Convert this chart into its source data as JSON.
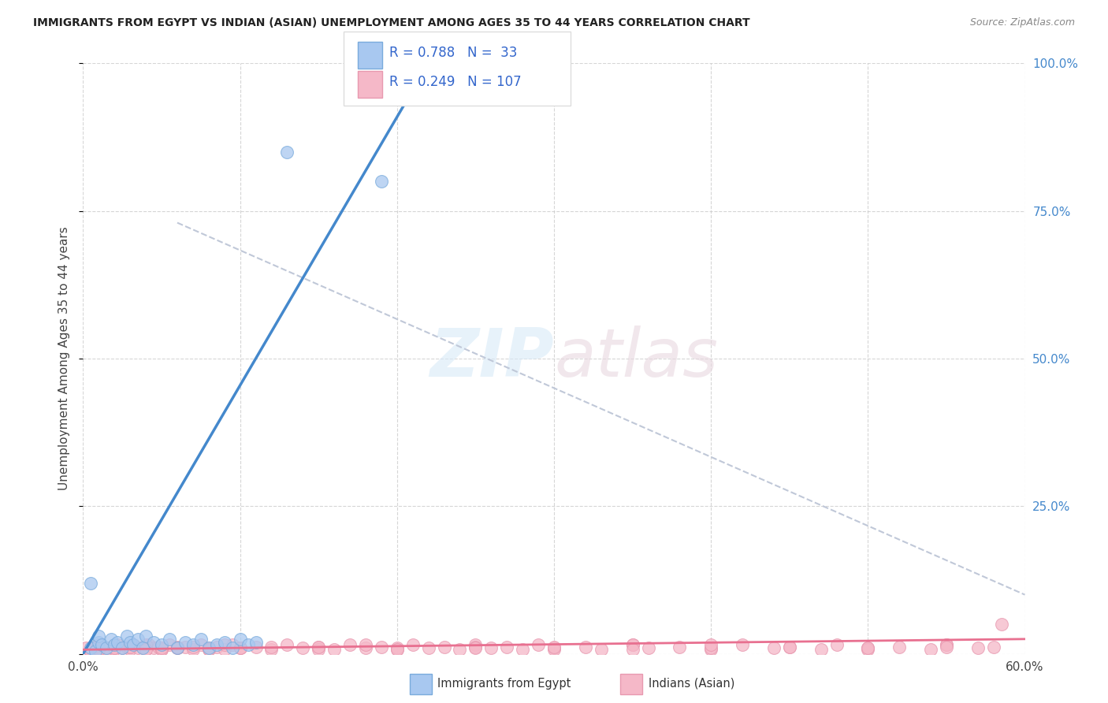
{
  "title": "IMMIGRANTS FROM EGYPT VS INDIAN (ASIAN) UNEMPLOYMENT AMONG AGES 35 TO 44 YEARS CORRELATION CHART",
  "source": "Source: ZipAtlas.com",
  "ylabel": "Unemployment Among Ages 35 to 44 years",
  "xlim": [
    0.0,
    0.6
  ],
  "ylim": [
    0.0,
    1.0
  ],
  "xticks": [
    0.0,
    0.1,
    0.2,
    0.3,
    0.4,
    0.5,
    0.6
  ],
  "xticklabels": [
    "0.0%",
    "",
    "",
    "",
    "",
    "",
    "60.0%"
  ],
  "yticks_right": [
    0.0,
    0.25,
    0.5,
    0.75,
    1.0
  ],
  "ytick_right_labels": [
    "",
    "25.0%",
    "50.0%",
    "75.0%",
    "100.0%"
  ],
  "background_color": "#ffffff",
  "grid_color": "#cccccc",
  "egypt_color": "#a8c8f0",
  "egypt_edge_color": "#7aabdc",
  "india_color": "#f5b8c8",
  "india_edge_color": "#e899b0",
  "egypt_R": 0.788,
  "egypt_N": 33,
  "india_R": 0.249,
  "india_N": 107,
  "egypt_line_color": "#4488cc",
  "india_line_color": "#e87090",
  "ref_line_color": "#c0c8d8",
  "egypt_scatter_x": [
    0.005,
    0.008,
    0.01,
    0.01,
    0.012,
    0.015,
    0.018,
    0.02,
    0.022,
    0.025,
    0.028,
    0.03,
    0.032,
    0.035,
    0.038,
    0.04,
    0.045,
    0.05,
    0.055,
    0.06,
    0.065,
    0.07,
    0.075,
    0.08,
    0.085,
    0.09,
    0.095,
    0.1,
    0.105,
    0.11,
    0.13,
    0.19,
    0.005
  ],
  "egypt_scatter_y": [
    0.01,
    0.005,
    0.02,
    0.03,
    0.015,
    0.01,
    0.025,
    0.015,
    0.02,
    0.01,
    0.03,
    0.02,
    0.015,
    0.025,
    0.01,
    0.03,
    0.02,
    0.015,
    0.025,
    0.01,
    0.02,
    0.015,
    0.025,
    0.01,
    0.015,
    0.02,
    0.01,
    0.025,
    0.015,
    0.02,
    0.85,
    0.8,
    0.12
  ],
  "india_scatter_x": [
    0.002,
    0.005,
    0.008,
    0.01,
    0.012,
    0.015,
    0.018,
    0.02,
    0.022,
    0.025,
    0.028,
    0.03,
    0.032,
    0.035,
    0.038,
    0.04,
    0.042,
    0.045,
    0.048,
    0.05,
    0.055,
    0.06,
    0.065,
    0.07,
    0.075,
    0.08,
    0.085,
    0.09,
    0.095,
    0.1,
    0.11,
    0.12,
    0.13,
    0.14,
    0.15,
    0.16,
    0.17,
    0.18,
    0.19,
    0.2,
    0.21,
    0.22,
    0.23,
    0.24,
    0.25,
    0.26,
    0.27,
    0.28,
    0.29,
    0.3,
    0.32,
    0.33,
    0.35,
    0.36,
    0.38,
    0.4,
    0.42,
    0.44,
    0.45,
    0.47,
    0.48,
    0.5,
    0.52,
    0.54,
    0.55,
    0.57,
    0.58,
    0.585,
    0.01,
    0.015,
    0.02,
    0.03,
    0.04,
    0.05,
    0.06,
    0.07,
    0.08,
    0.09,
    0.1,
    0.12,
    0.15,
    0.18,
    0.2,
    0.25,
    0.3,
    0.35,
    0.4,
    0.45,
    0.5,
    0.55,
    0.005,
    0.01,
    0.02,
    0.03,
    0.04,
    0.05,
    0.06,
    0.08,
    0.1,
    0.15,
    0.2,
    0.25,
    0.3,
    0.35,
    0.4,
    0.5,
    0.55
  ],
  "india_scatter_y": [
    0.01,
    0.008,
    0.012,
    0.015,
    0.008,
    0.01,
    0.012,
    0.008,
    0.015,
    0.01,
    0.012,
    0.008,
    0.015,
    0.01,
    0.012,
    0.008,
    0.015,
    0.01,
    0.012,
    0.008,
    0.015,
    0.01,
    0.012,
    0.008,
    0.015,
    0.01,
    0.012,
    0.008,
    0.015,
    0.01,
    0.012,
    0.008,
    0.015,
    0.01,
    0.012,
    0.008,
    0.015,
    0.01,
    0.012,
    0.008,
    0.015,
    0.01,
    0.012,
    0.008,
    0.015,
    0.01,
    0.012,
    0.008,
    0.015,
    0.01,
    0.012,
    0.008,
    0.015,
    0.01,
    0.012,
    0.008,
    0.015,
    0.01,
    0.012,
    0.008,
    0.015,
    0.01,
    0.012,
    0.008,
    0.015,
    0.01,
    0.012,
    0.05,
    0.005,
    0.008,
    0.01,
    0.012,
    0.015,
    0.008,
    0.01,
    0.012,
    0.008,
    0.015,
    0.01,
    0.012,
    0.008,
    0.015,
    0.01,
    0.012,
    0.008,
    0.015,
    0.01,
    0.012,
    0.008,
    0.015,
    0.005,
    0.008,
    0.01,
    0.012,
    0.008,
    0.01,
    0.012,
    0.008,
    0.01,
    0.012,
    0.008,
    0.01,
    0.012,
    0.008,
    0.015,
    0.01,
    0.012
  ],
  "egypt_line_x": [
    0.0,
    0.22
  ],
  "egypt_line_y": [
    0.0,
    1.0
  ],
  "india_line_x": [
    0.0,
    0.6
  ],
  "india_line_y": [
    0.007,
    0.025
  ],
  "ref_line_x": [
    0.06,
    0.6
  ],
  "ref_line_y": [
    0.73,
    0.1
  ]
}
